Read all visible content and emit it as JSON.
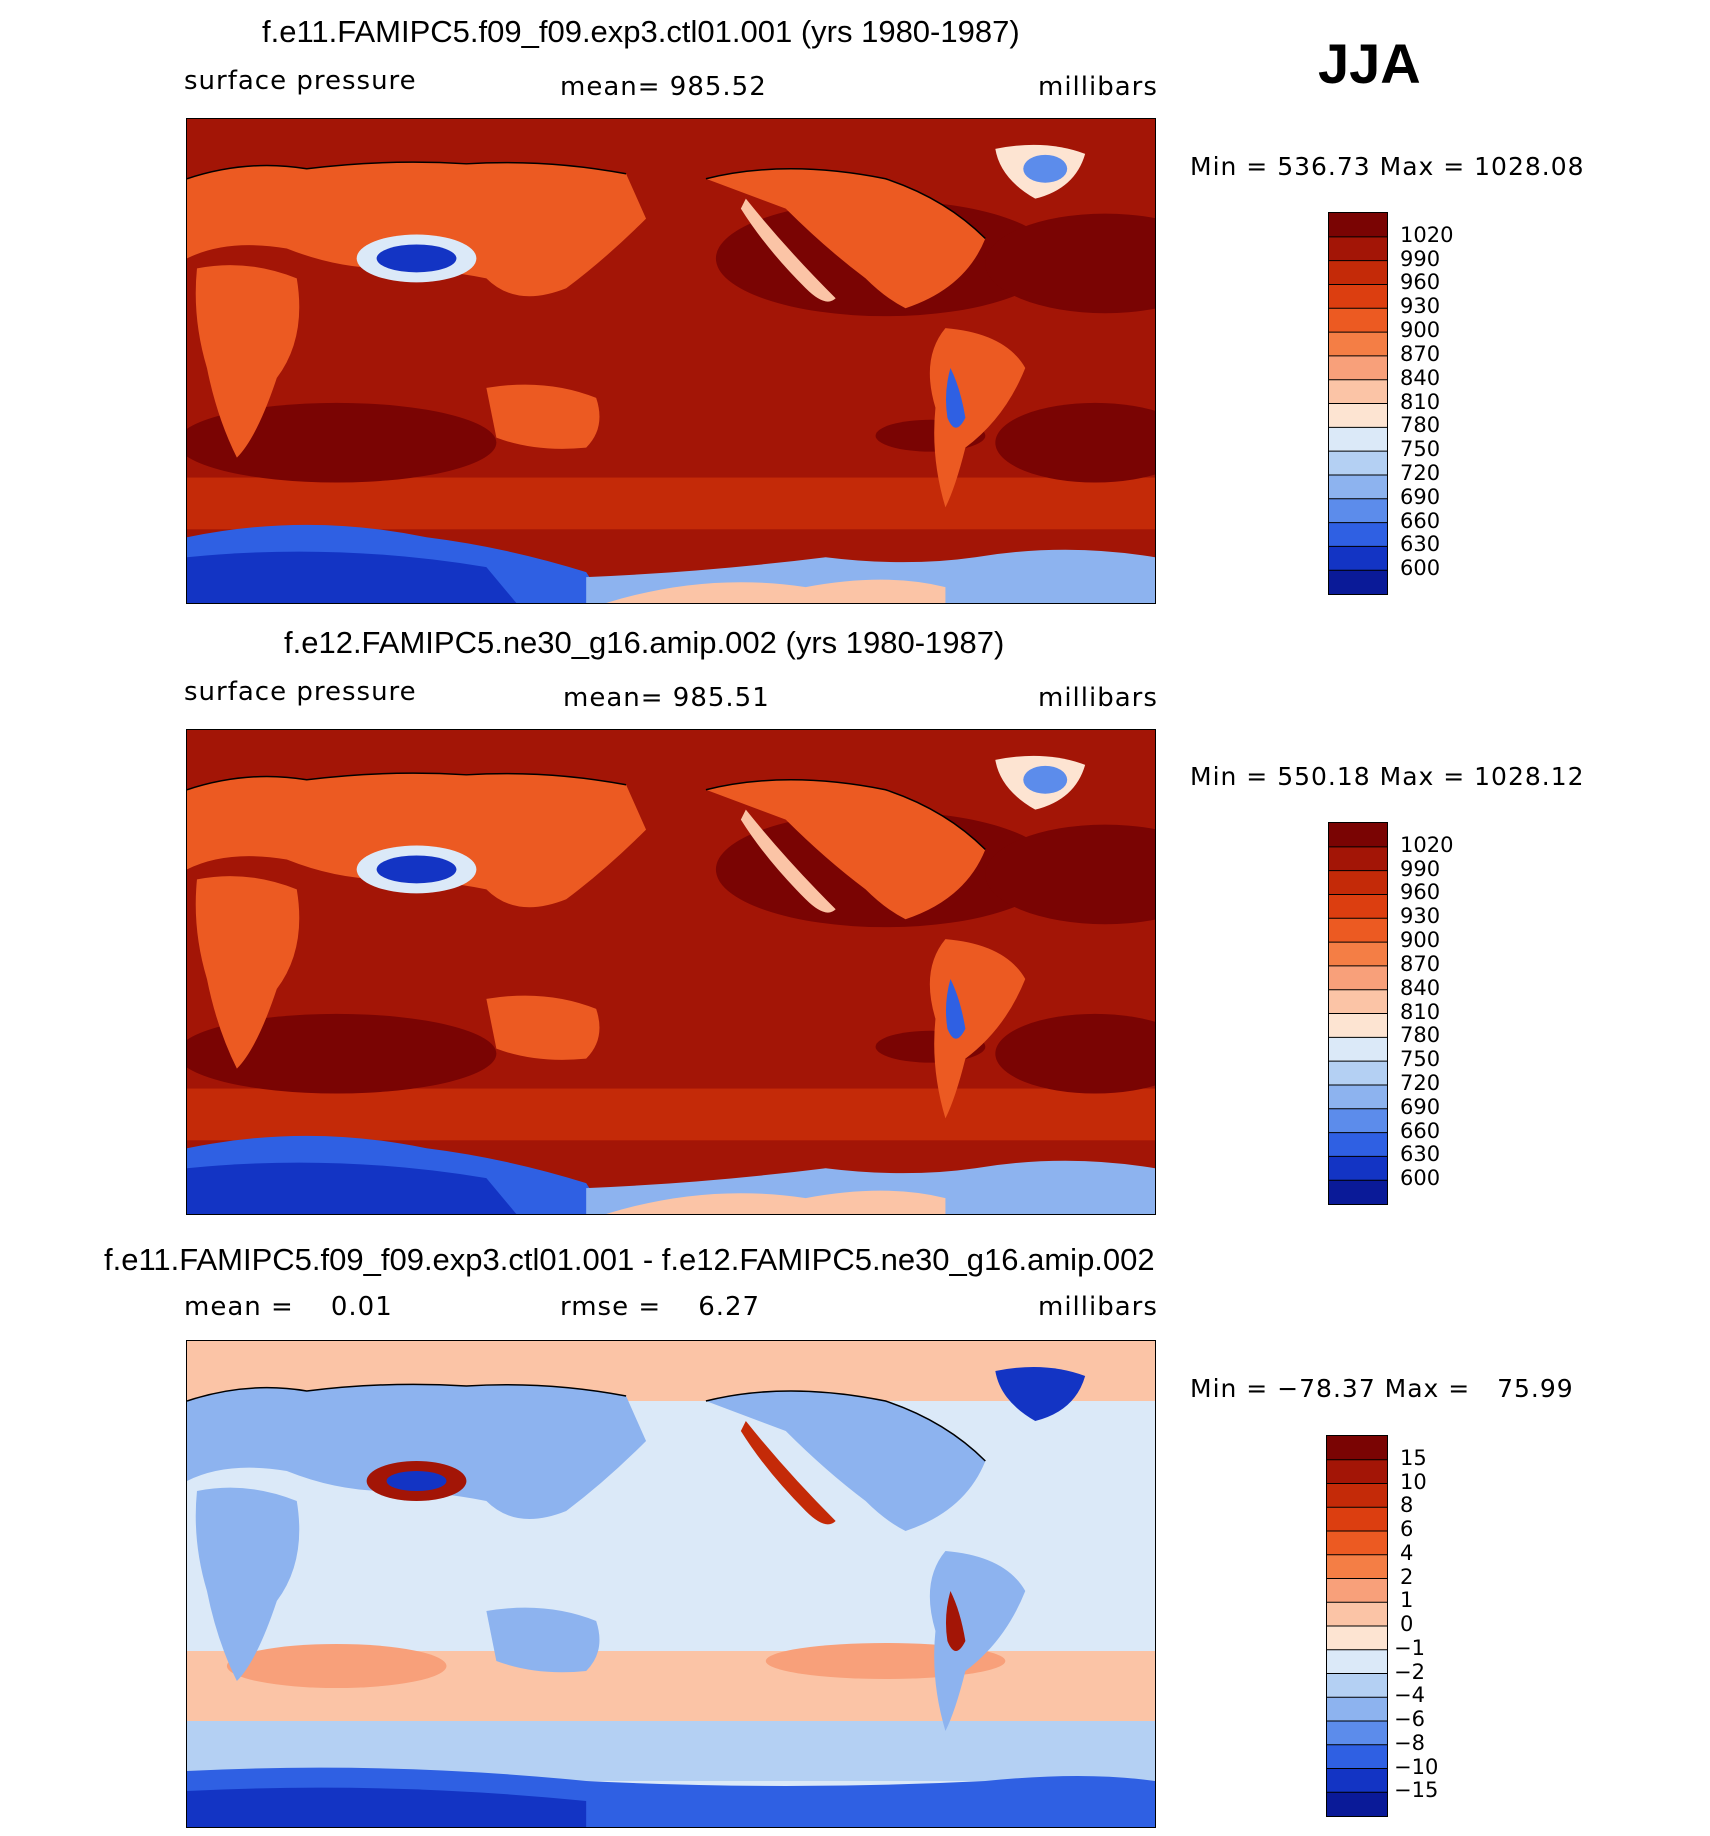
{
  "season": "JJA",
  "panels": [
    {
      "title": "f.e11.FAMIPC5.f09_f09.exp3.ctl01.001 (yrs 1980-1987)",
      "left_label": "surface pressure",
      "center_label": "mean= 985.52",
      "right_label": "millibars",
      "minmax": "Min = 536.73 Max = 1028.08"
    },
    {
      "title": "f.e12.FAMIPC5.ne30_g16.amip.002 (yrs 1980-1987)",
      "left_label": "surface pressure",
      "center_label": "mean= 985.51",
      "right_label": "millibars",
      "minmax": "Min = 550.18 Max = 1028.12"
    },
    {
      "title": "f.e11.FAMIPC5.f09_f09.exp3.ctl01.001 - f.e12.FAMIPC5.ne30_g16.amip.002",
      "left_label": "mean =    0.01",
      "center_label": "rmse =    6.27",
      "right_label": "millibars",
      "minmax": "Min = −78.37 Max =   75.99"
    }
  ],
  "chart_data": [
    {
      "type": "heatmap",
      "title": "f.e11.FAMIPC5.f09_f09.exp3.ctl01.001 (yrs 1980-1987)",
      "variable": "surface pressure",
      "units": "millibars",
      "mean": 985.52,
      "min": 536.73,
      "max": 1028.08,
      "colorbar_levels": [
        1020,
        990,
        960,
        930,
        900,
        870,
        840,
        810,
        780,
        750,
        720,
        690,
        660,
        630,
        600
      ],
      "colorbar_colors": [
        "#7a0403",
        "#a31506",
        "#c42a08",
        "#dc3e10",
        "#ec5a22",
        "#f47e45",
        "#f8a07a",
        "#fbc4a6",
        "#fde4d2",
        "#dbe9f8",
        "#b4d0f3",
        "#8db3ef",
        "#5c8ceb",
        "#2f60e3",
        "#1334c4",
        "#0a1a98"
      ],
      "map_projection": "global cylindrical, Pacific-centered"
    },
    {
      "type": "heatmap",
      "title": "f.e12.FAMIPC5.ne30_g16.amip.002 (yrs 1980-1987)",
      "variable": "surface pressure",
      "units": "millibars",
      "mean": 985.51,
      "min": 550.18,
      "max": 1028.12,
      "colorbar_levels": [
        1020,
        990,
        960,
        930,
        900,
        870,
        840,
        810,
        780,
        750,
        720,
        690,
        660,
        630,
        600
      ],
      "colorbar_colors": [
        "#7a0403",
        "#a31506",
        "#c42a08",
        "#dc3e10",
        "#ec5a22",
        "#f47e45",
        "#f8a07a",
        "#fbc4a6",
        "#fde4d2",
        "#dbe9f8",
        "#b4d0f3",
        "#8db3ef",
        "#5c8ceb",
        "#2f60e3",
        "#1334c4",
        "#0a1a98"
      ],
      "map_projection": "global cylindrical, Pacific-centered"
    },
    {
      "type": "heatmap",
      "title": "f.e11.FAMIPC5.f09_f09.exp3.ctl01.001 - f.e12.FAMIPC5.ne30_g16.amip.002",
      "units": "millibars",
      "mean": 0.01,
      "rmse": 6.27,
      "min": -78.37,
      "max": 75.99,
      "colorbar_levels": [
        "15",
        "10",
        "8",
        "6",
        "4",
        "2",
        "1",
        "0",
        "−1",
        "−2",
        "−4",
        "−6",
        "−8",
        "−10",
        "−15"
      ],
      "colorbar_colors": [
        "#7a0403",
        "#a31506",
        "#c42a08",
        "#dc3e10",
        "#ec5a22",
        "#f47e45",
        "#f8a07a",
        "#fbc4a6",
        "#fde4d2",
        "#dbe9f8",
        "#b4d0f3",
        "#8db3ef",
        "#5c8ceb",
        "#2f60e3",
        "#1334c4",
        "#0a1a98"
      ],
      "map_projection": "global cylindrical, Pacific-centered"
    }
  ]
}
